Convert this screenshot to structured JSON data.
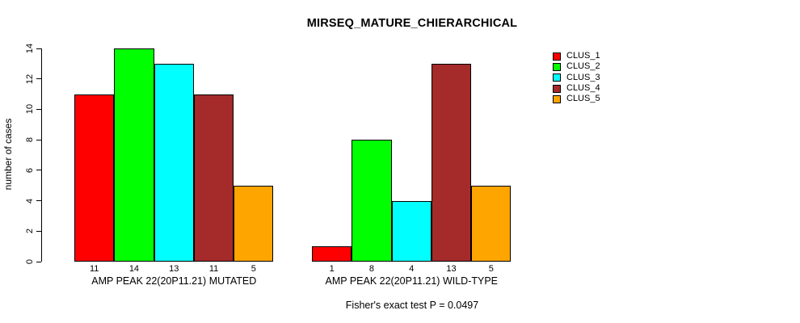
{
  "chart_data": {
    "type": "bar",
    "title": "MIRSEQ_MATURE_CHIERARCHICAL",
    "ylabel": "number of cases",
    "ylim": [
      0,
      14
    ],
    "yticks": [
      0,
      2,
      4,
      6,
      8,
      10,
      12,
      14
    ],
    "grid": false,
    "legend_position": "top-right",
    "bar_border_color": "#000000",
    "series": [
      {
        "name": "CLUS_1",
        "color": "#FF0000"
      },
      {
        "name": "CLUS_2",
        "color": "#00FF00"
      },
      {
        "name": "CLUS_3",
        "color": "#00FFFF"
      },
      {
        "name": "CLUS_4",
        "color": "#A52A2A"
      },
      {
        "name": "CLUS_5",
        "color": "#FFA500"
      }
    ],
    "groups": [
      {
        "label": "AMP PEAK 22(20P11.21) MUTATED",
        "values": [
          11,
          14,
          13,
          11,
          5
        ]
      },
      {
        "label": "AMP PEAK 22(20P11.21) WILD-TYPE",
        "values": [
          1,
          8,
          4,
          13,
          5
        ]
      }
    ],
    "caption": "Fisher's exact test P = 0.0497"
  }
}
